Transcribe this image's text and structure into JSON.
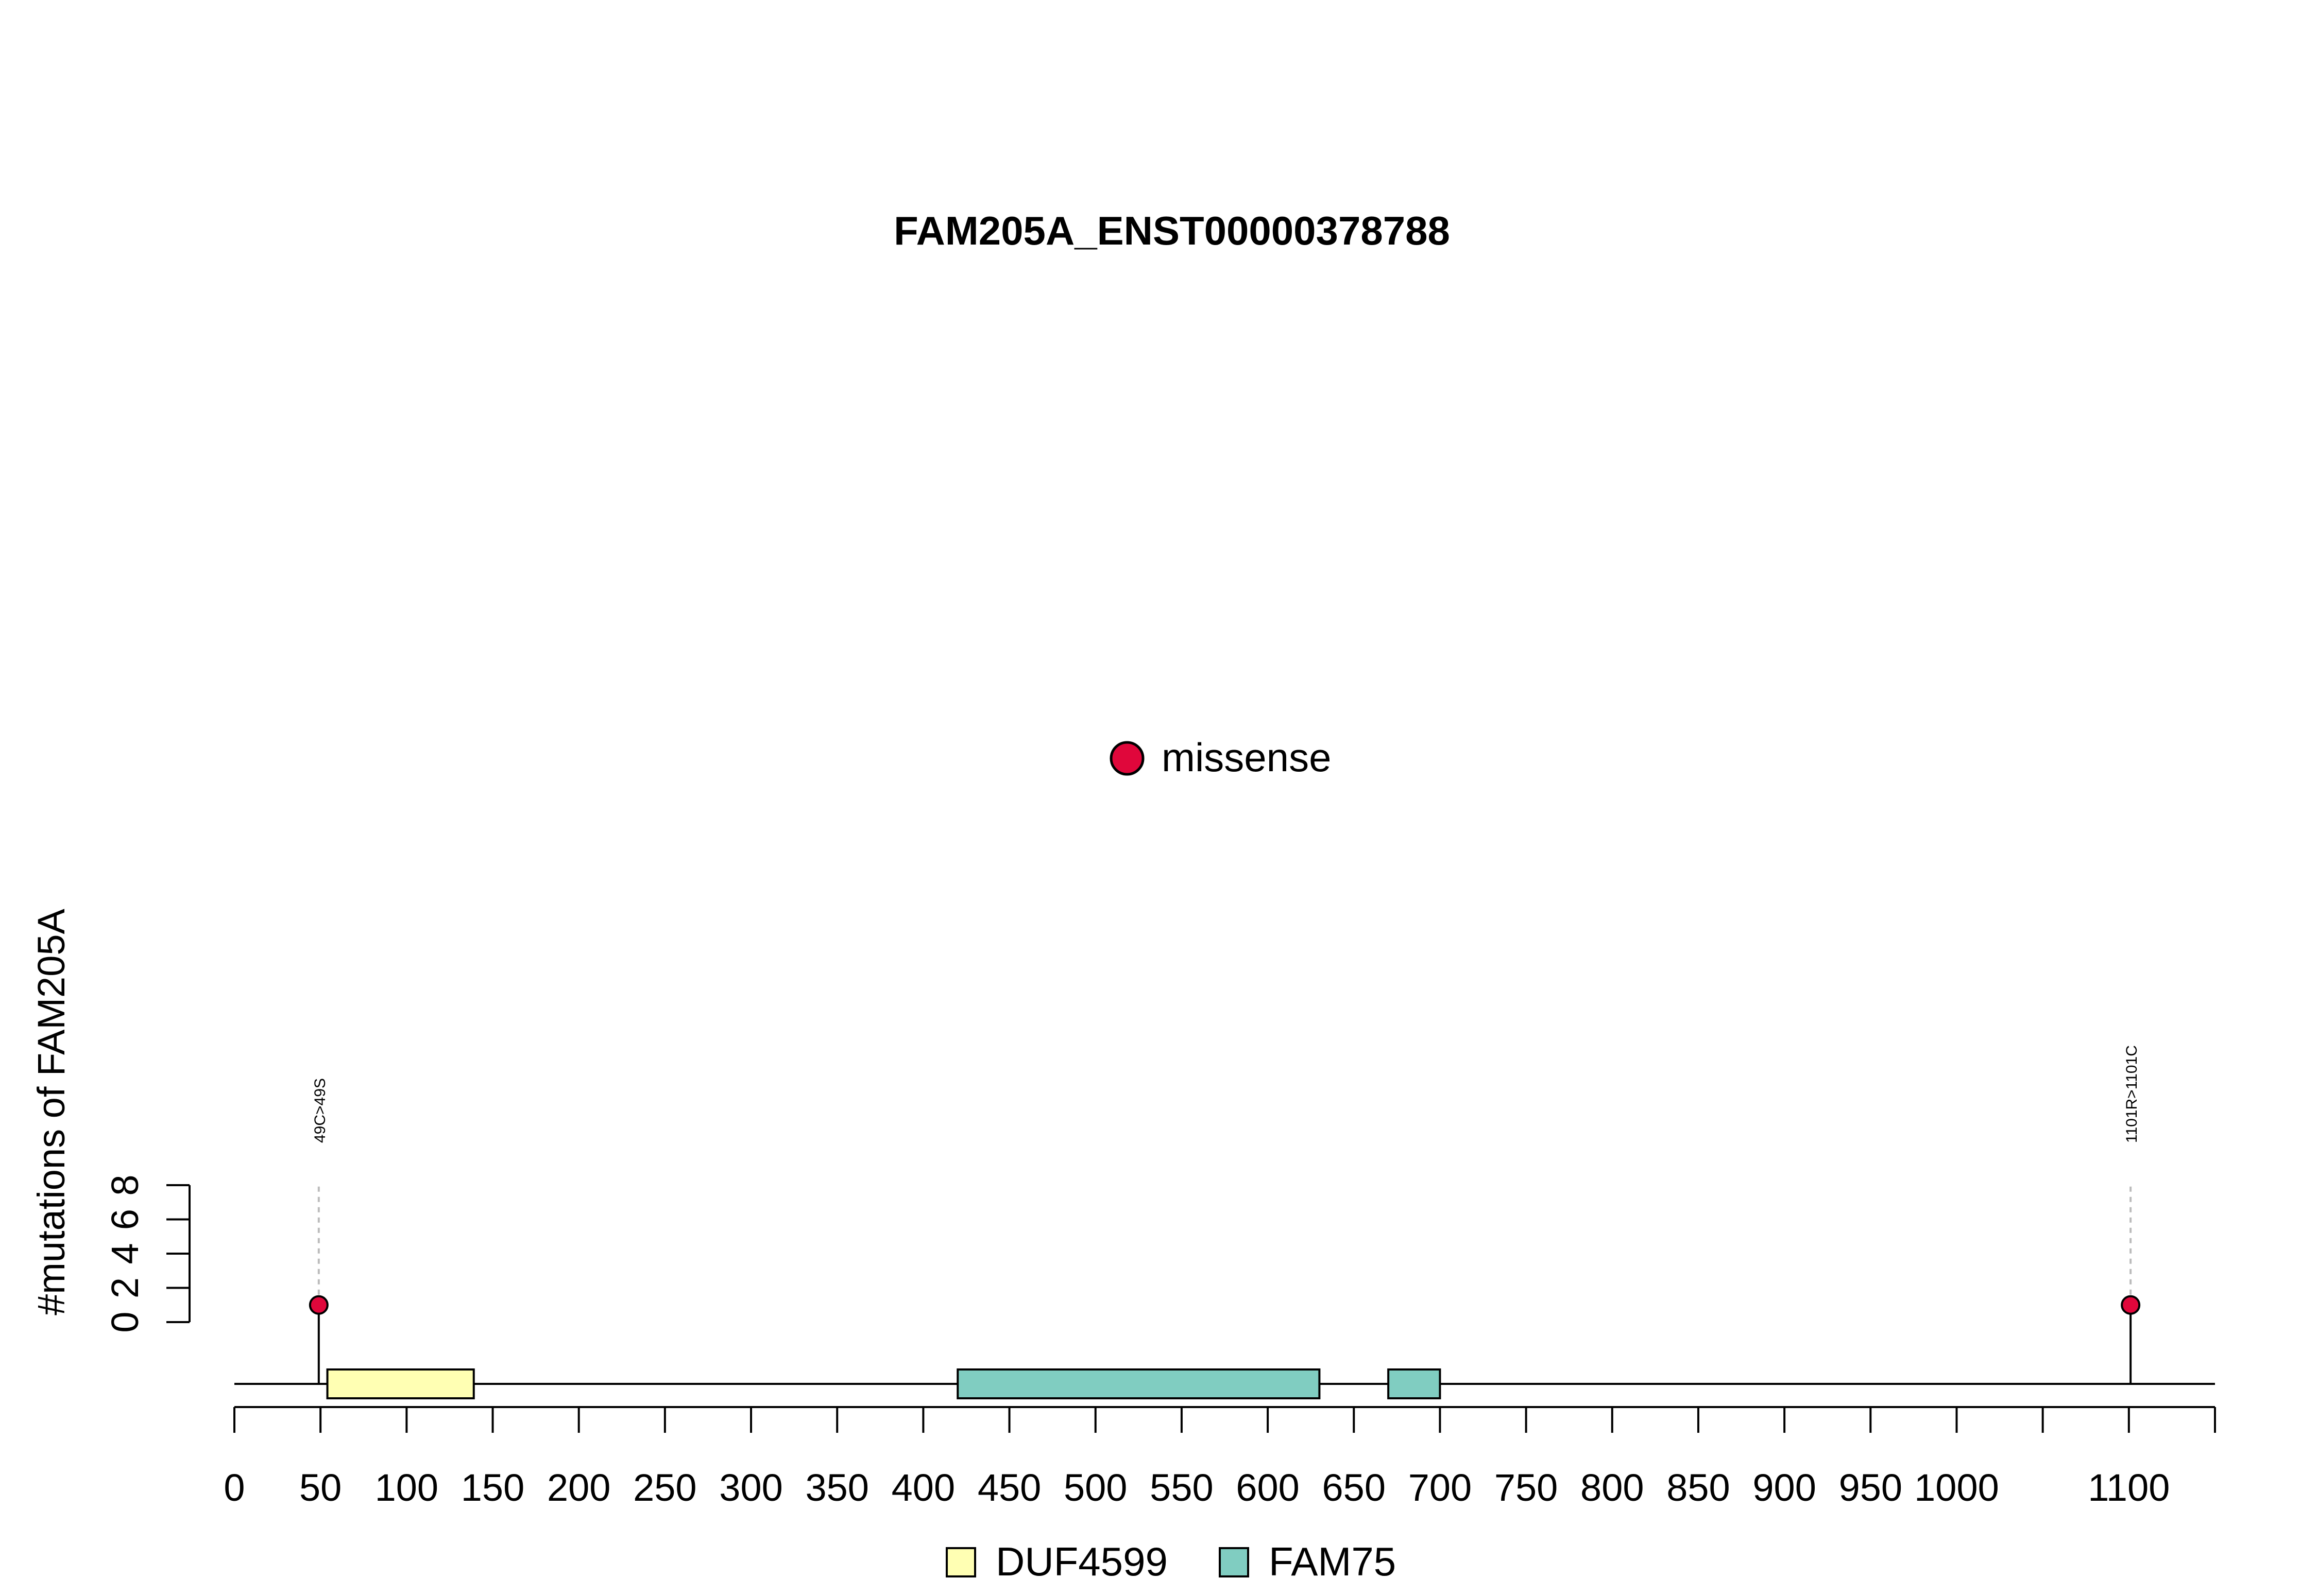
{
  "chart_data": {
    "type": "lollipop",
    "title": "FAM205A_ENST00000378788",
    "ylabel": "#mutations of FAM205A",
    "xlim": [
      0,
      1150
    ],
    "ylim": [
      0,
      8
    ],
    "x_ticks": [
      0,
      50,
      100,
      150,
      200,
      250,
      300,
      350,
      400,
      450,
      500,
      550,
      600,
      650,
      700,
      750,
      800,
      850,
      900,
      950,
      1000,
      1050,
      1100,
      1150
    ],
    "x_tick_labels": [
      "0",
      "50",
      "100",
      "150",
      "200",
      "250",
      "300",
      "350",
      "400",
      "450",
      "500",
      "550",
      "600",
      "650",
      "700",
      "750",
      "800",
      "850",
      "900",
      "950",
      "1000",
      "",
      "1100",
      ""
    ],
    "y_ticks": [
      0,
      2,
      4,
      6,
      8
    ],
    "y_tick_labels": [
      "0",
      "2",
      "4",
      "6",
      "8"
    ],
    "mutations": [
      {
        "position": 49,
        "count": 1,
        "label": "49C>49S",
        "type": "missense"
      },
      {
        "position": 1101,
        "count": 1,
        "label": "1101R>1101C",
        "type": "missense"
      }
    ],
    "domains": [
      {
        "name": "DUF4599",
        "start": 54,
        "end": 139,
        "color": "#FFFFB3"
      },
      {
        "name": "FAM75",
        "start": 420,
        "end": 630,
        "color": "#80CDC1"
      },
      {
        "name": "FAM75",
        "start": 670,
        "end": 700,
        "color": "#80CDC1"
      }
    ],
    "mutation_legend": [
      {
        "label": "missense",
        "color": "#E0073B"
      }
    ],
    "domain_legend": [
      {
        "label": "DUF4599",
        "color": "#FFFFB3"
      },
      {
        "label": "FAM75",
        "color": "#80CDC1"
      }
    ],
    "legend_placement": "mutation legend center; domain legend bottom-center",
    "grid": false
  }
}
